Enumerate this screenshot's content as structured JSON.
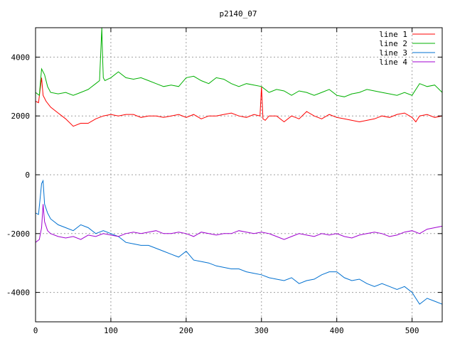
{
  "chart_data": {
    "type": "line",
    "title": "p2140_07",
    "xlim": [
      0,
      540
    ],
    "ylim": [
      -5000,
      5000
    ],
    "xticks": [
      0,
      100,
      200,
      300,
      400,
      500
    ],
    "yticks": [
      -4000,
      -2000,
      0,
      2000,
      4000
    ],
    "grid": true,
    "legend_position": "top-right",
    "series": [
      {
        "name": "line 1",
        "color": "#ff0000",
        "x": [
          0,
          4,
          8,
          10,
          14,
          20,
          30,
          40,
          50,
          60,
          70,
          80,
          90,
          100,
          110,
          120,
          130,
          140,
          150,
          160,
          170,
          180,
          190,
          200,
          210,
          220,
          230,
          240,
          250,
          260,
          270,
          280,
          290,
          298,
          300,
          302,
          305,
          310,
          320,
          330,
          340,
          350,
          360,
          370,
          380,
          390,
          400,
          410,
          420,
          430,
          440,
          450,
          460,
          470,
          480,
          490,
          500,
          505,
          510,
          520,
          530,
          540
        ],
        "y": [
          2500,
          2450,
          3300,
          2700,
          2500,
          2300,
          2100,
          1900,
          1650,
          1750,
          1750,
          1900,
          2000,
          2050,
          2000,
          2050,
          2050,
          1950,
          2000,
          2000,
          1950,
          2000,
          2050,
          1950,
          2050,
          1900,
          2000,
          2000,
          2050,
          2100,
          2000,
          1950,
          2050,
          2000,
          3000,
          1900,
          1850,
          2000,
          2000,
          1800,
          2000,
          1900,
          2150,
          2000,
          1900,
          2050,
          1950,
          1900,
          1850,
          1800,
          1850,
          1900,
          2000,
          1950,
          2050,
          2100,
          1950,
          1800,
          2000,
          2050,
          1950,
          2000
        ]
      },
      {
        "name": "line 2",
        "color": "#00b000",
        "x": [
          0,
          5,
          8,
          12,
          16,
          20,
          30,
          40,
          50,
          60,
          70,
          80,
          85,
          88,
          89,
          90,
          92,
          100,
          110,
          120,
          130,
          140,
          150,
          160,
          170,
          180,
          190,
          200,
          210,
          220,
          230,
          240,
          250,
          260,
          270,
          280,
          290,
          300,
          310,
          320,
          330,
          340,
          350,
          360,
          370,
          380,
          390,
          400,
          410,
          420,
          430,
          440,
          450,
          460,
          470,
          480,
          490,
          500,
          510,
          520,
          530,
          540
        ],
        "y": [
          2800,
          2700,
          3600,
          3400,
          3000,
          2800,
          2750,
          2800,
          2700,
          2800,
          2900,
          3100,
          3200,
          5000,
          4000,
          3300,
          3200,
          3300,
          3500,
          3300,
          3250,
          3300,
          3200,
          3100,
          3000,
          3050,
          3000,
          3300,
          3350,
          3200,
          3100,
          3300,
          3250,
          3100,
          3000,
          3100,
          3050,
          3000,
          2800,
          2900,
          2850,
          2700,
          2850,
          2800,
          2700,
          2800,
          2900,
          2700,
          2650,
          2750,
          2800,
          2900,
          2850,
          2800,
          2750,
          2700,
          2800,
          2700,
          3100,
          3000,
          3050,
          2800
        ]
      },
      {
        "name": "line 3",
        "color": "#0070d0",
        "x": [
          0,
          4,
          8,
          10,
          12,
          16,
          20,
          30,
          40,
          50,
          60,
          70,
          80,
          90,
          100,
          110,
          120,
          130,
          140,
          150,
          160,
          170,
          180,
          190,
          200,
          210,
          220,
          230,
          240,
          250,
          260,
          270,
          280,
          290,
          300,
          310,
          320,
          330,
          340,
          350,
          360,
          370,
          380,
          390,
          400,
          410,
          420,
          430,
          440,
          450,
          460,
          470,
          480,
          490,
          500,
          510,
          520,
          530,
          540
        ],
        "y": [
          -1300,
          -1350,
          -300,
          -200,
          -1000,
          -1300,
          -1500,
          -1700,
          -1800,
          -1900,
          -1700,
          -1800,
          -2000,
          -1900,
          -2000,
          -2100,
          -2300,
          -2350,
          -2400,
          -2400,
          -2500,
          -2600,
          -2700,
          -2800,
          -2600,
          -2900,
          -2950,
          -3000,
          -3100,
          -3150,
          -3200,
          -3200,
          -3300,
          -3350,
          -3400,
          -3500,
          -3550,
          -3600,
          -3500,
          -3700,
          -3600,
          -3550,
          -3400,
          -3300,
          -3300,
          -3500,
          -3600,
          -3550,
          -3700,
          -3800,
          -3700,
          -3800,
          -3900,
          -3800,
          -4000,
          -4400,
          -4200,
          -4300,
          -4400
        ]
      },
      {
        "name": "line 4",
        "color": "#a000d0",
        "x": [
          0,
          5,
          8,
          10,
          12,
          16,
          20,
          30,
          40,
          50,
          60,
          70,
          80,
          90,
          100,
          110,
          120,
          130,
          140,
          150,
          160,
          170,
          180,
          190,
          200,
          210,
          220,
          230,
          240,
          250,
          260,
          270,
          280,
          290,
          300,
          310,
          320,
          330,
          340,
          350,
          360,
          370,
          380,
          390,
          400,
          410,
          420,
          430,
          440,
          450,
          460,
          470,
          480,
          490,
          500,
          510,
          520,
          530,
          540
        ],
        "y": [
          -2300,
          -2200,
          -1800,
          -1000,
          -1600,
          -1900,
          -2000,
          -2100,
          -2150,
          -2100,
          -2200,
          -2050,
          -2100,
          -2000,
          -2050,
          -2100,
          -2000,
          -1950,
          -2000,
          -1950,
          -1900,
          -2000,
          -2000,
          -1950,
          -2000,
          -2100,
          -1950,
          -2000,
          -2050,
          -2000,
          -2000,
          -1900,
          -1950,
          -2000,
          -1950,
          -2000,
          -2100,
          -2200,
          -2100,
          -2000,
          -2050,
          -2100,
          -2000,
          -2050,
          -2000,
          -2100,
          -2150,
          -2050,
          -2000,
          -1950,
          -2000,
          -2100,
          -2050,
          -1950,
          -1900,
          -2000,
          -1850,
          -1800,
          -1750
        ]
      }
    ]
  }
}
